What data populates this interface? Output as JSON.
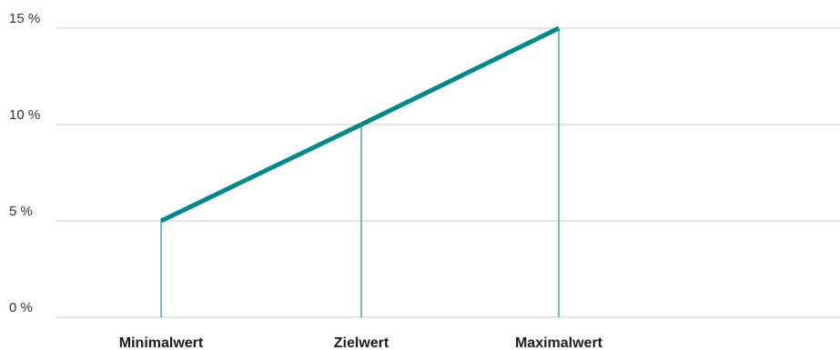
{
  "chart_data": {
    "type": "line",
    "categories": [
      "Minimalwert",
      "Zielwert",
      "Maximalwert"
    ],
    "series": [
      {
        "values": [
          5,
          10,
          15
        ]
      }
    ],
    "y_ticks": [
      "0 %",
      "5 %",
      "10 %",
      "15 %"
    ],
    "y_tick_values": [
      0,
      5,
      10,
      15
    ],
    "ylim": [
      0,
      15
    ],
    "grid": true,
    "legend": "none",
    "colors": {
      "line": "#00868b",
      "drop": "#6fbfbf",
      "grid": "#c8c8c8"
    }
  }
}
